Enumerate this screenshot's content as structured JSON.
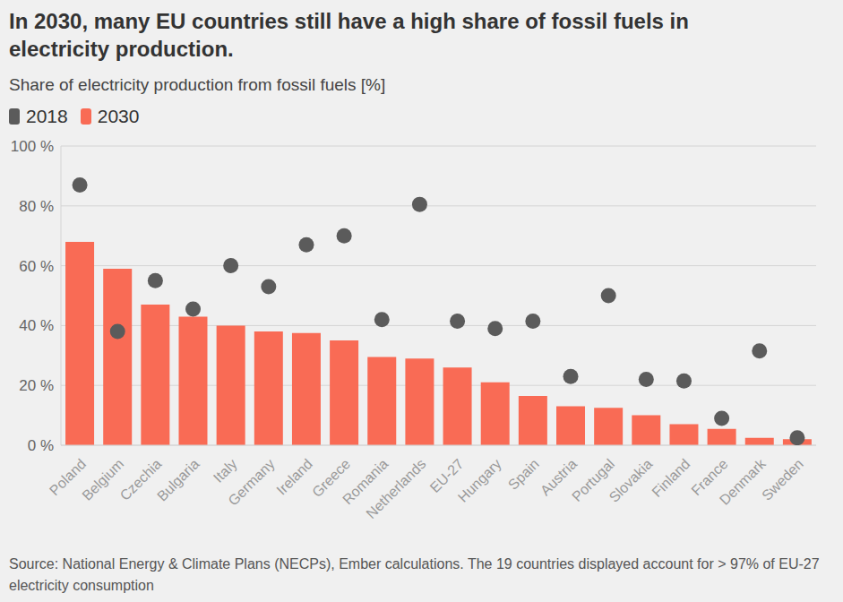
{
  "chart_data": {
    "type": "bar",
    "title": "In 2030, many EU countries still have a high share of fossil fuels in electricity production.",
    "subtitle": "Share of electricity production from fossil fuels [%]",
    "note": "Source: National Energy & Climate Plans (NECPs), Ember calculations. The 19 countries displayed account for > 97% of EU-27 electricity consumption",
    "categories": [
      "Poland",
      "Belgium",
      "Czechia",
      "Bulgaria",
      "Italy",
      "Germany",
      "Ireland",
      "Greece",
      "Romania",
      "Netherlands",
      "EU-27",
      "Hungary",
      "Spain",
      "Austria",
      "Portugal",
      "Slovakia",
      "Finland",
      "France",
      "Denmark",
      "Sweden"
    ],
    "series": [
      {
        "name": "2018",
        "type": "scatter",
        "marker": "circle",
        "color": "#5b5b5b",
        "values": [
          87,
          38,
          55,
          45.5,
          60,
          53,
          67,
          70,
          42,
          80.5,
          41.5,
          39,
          41.5,
          23,
          50,
          22,
          21.5,
          9,
          31.5,
          2.5
        ]
      },
      {
        "name": "2030",
        "type": "bar",
        "color": "#f96b55",
        "values": [
          68,
          59,
          47,
          43,
          40,
          38,
          37.5,
          35,
          29.5,
          29,
          26,
          21,
          16.5,
          13,
          12.5,
          10,
          7,
          5.5,
          2.5,
          2
        ]
      }
    ],
    "ylim": [
      0,
      100
    ],
    "yticks": [
      {
        "value": 0,
        "label": "0 %"
      },
      {
        "value": 20,
        "label": "20 %"
      },
      {
        "value": 40,
        "label": "40 %"
      },
      {
        "value": 60,
        "label": "60 %"
      },
      {
        "value": 80,
        "label": "80 %"
      },
      {
        "value": 100,
        "label": "100 %"
      }
    ],
    "grid": true,
    "legend": "top-left"
  }
}
